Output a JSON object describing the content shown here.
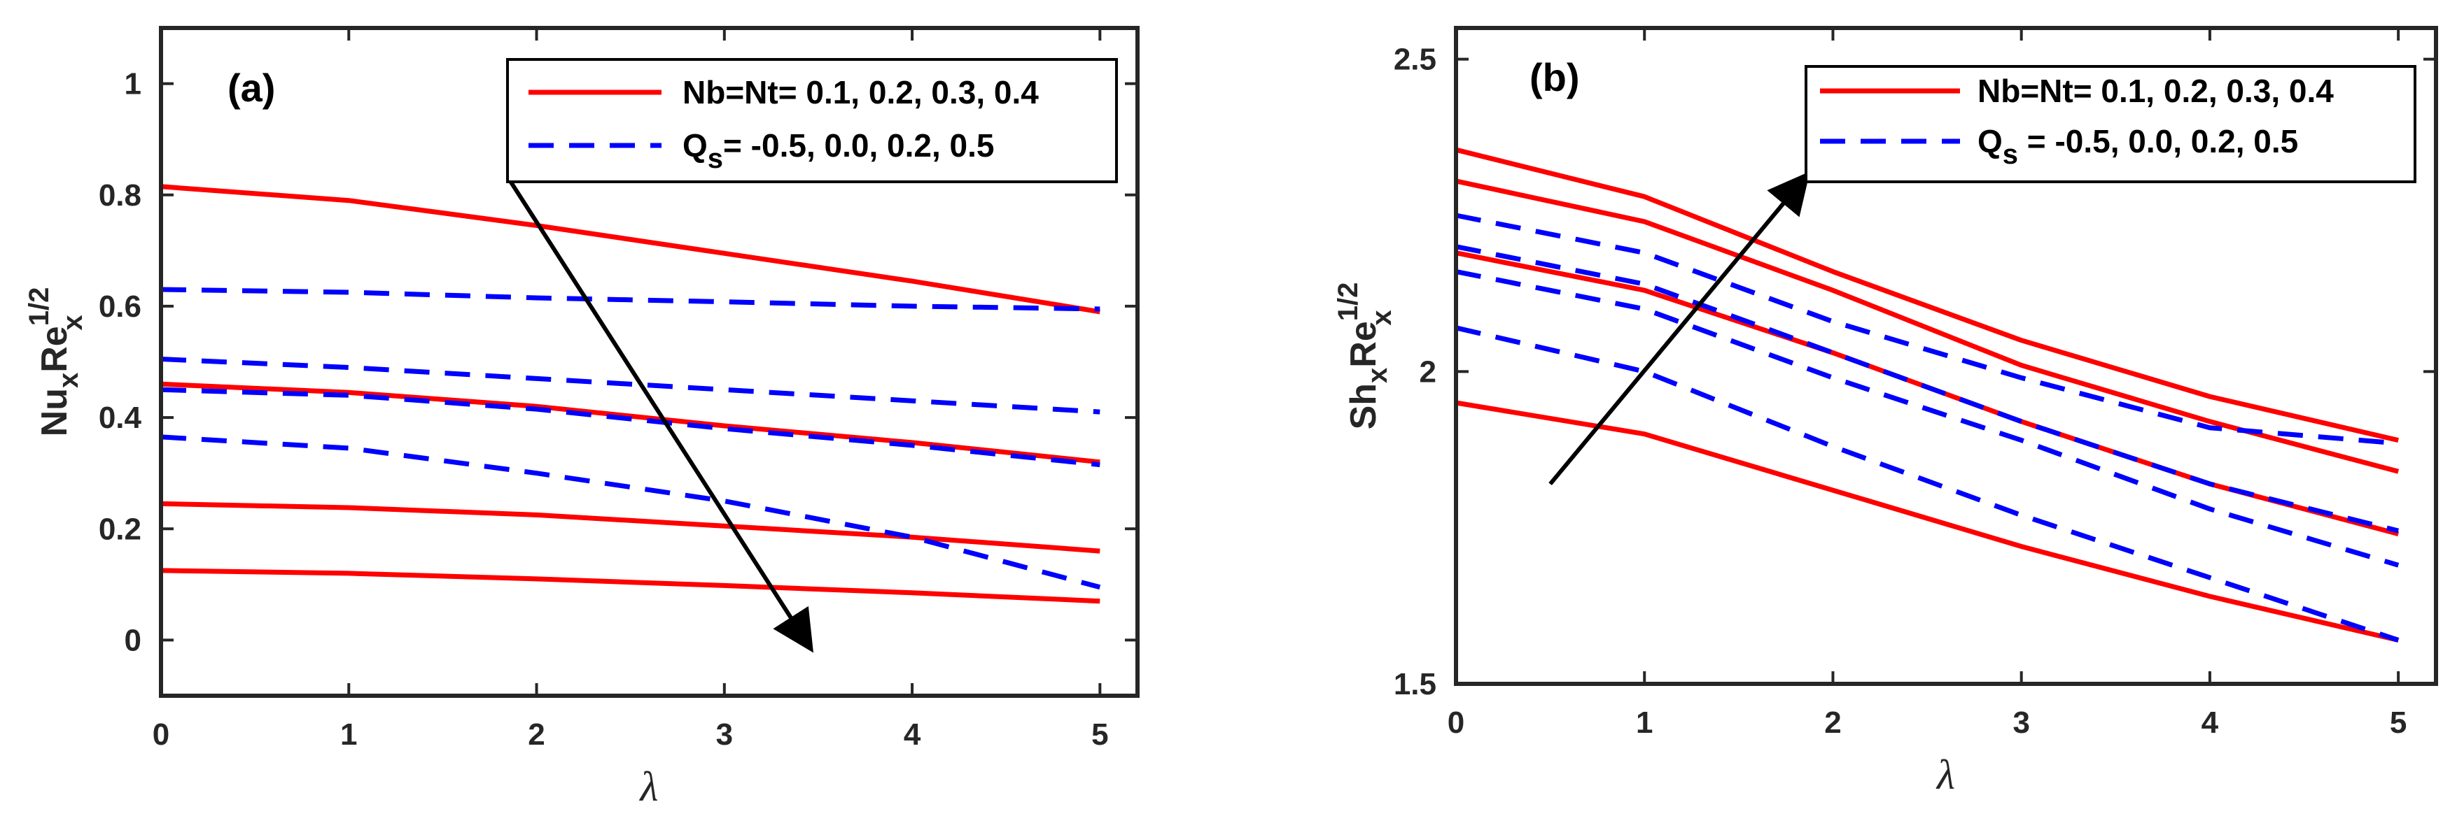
{
  "colors": {
    "solid": "#ff0000",
    "dashed": "#0000ff",
    "arrow": "#000000",
    "axis": "#262626"
  },
  "chart_data": [
    {
      "type": "line",
      "panel_label": "(a)",
      "xlabel": "λ",
      "ylabel": {
        "base1": "Nu",
        "sub1": "x",
        "base2": "Re",
        "sup": "1/2",
        "sub2": "x"
      },
      "xlim": [
        0,
        5.2
      ],
      "ylim": [
        -0.1,
        1.1
      ],
      "xticks": [
        0,
        1,
        2,
        3,
        4,
        5
      ],
      "yticks": [
        0,
        0.2,
        0.4,
        0.6,
        0.8,
        1
      ],
      "ytick_labels": [
        "0",
        "0.2",
        "0.4",
        "0.6",
        "0.8",
        "1"
      ],
      "x": [
        0,
        1,
        2,
        3,
        4,
        5
      ],
      "legend": [
        {
          "style": "solid",
          "text": "Nb=Nt= 0.1, 0.2, 0.3, 0.4"
        },
        {
          "style": "dashed",
          "text_pre": "Q",
          "text_sub": "s",
          "text_post": "= -0.5, 0.0, 0.2, 0.5"
        }
      ],
      "series": [
        {
          "name": "Nb=Nt=0.1",
          "style": "solid",
          "values": [
            0.815,
            0.79,
            0.745,
            0.695,
            0.645,
            0.59
          ]
        },
        {
          "name": "Nb=Nt=0.2",
          "style": "solid",
          "values": [
            0.46,
            0.445,
            0.42,
            0.385,
            0.355,
            0.32
          ]
        },
        {
          "name": "Nb=Nt=0.3",
          "style": "solid",
          "values": [
            0.245,
            0.238,
            0.225,
            0.205,
            0.185,
            0.16
          ]
        },
        {
          "name": "Nb=Nt=0.4",
          "style": "solid",
          "values": [
            0.125,
            0.12,
            0.11,
            0.098,
            0.085,
            0.07
          ]
        },
        {
          "name": "Qs=-0.5",
          "style": "dashed",
          "values": [
            0.63,
            0.625,
            0.615,
            0.608,
            0.6,
            0.595
          ]
        },
        {
          "name": "Qs=0.0",
          "style": "dashed",
          "values": [
            0.505,
            0.49,
            0.47,
            0.45,
            0.43,
            0.41
          ]
        },
        {
          "name": "Qs=0.2",
          "style": "dashed",
          "values": [
            0.45,
            0.44,
            0.415,
            0.38,
            0.35,
            0.315
          ]
        },
        {
          "name": "Qs=0.5",
          "style": "dashed",
          "values": [
            0.365,
            0.345,
            0.3,
            0.25,
            0.185,
            0.095
          ]
        }
      ],
      "arrow": {
        "from": [
          1.85,
          0.83
        ],
        "to": [
          3.45,
          -0.01
        ]
      }
    },
    {
      "type": "line",
      "panel_label": "(b)",
      "xlabel": "λ",
      "ylabel": {
        "base1": "Sh",
        "sub1": "x",
        "base2": "Re",
        "sup": "1/2",
        "sub2": "x"
      },
      "xlim": [
        0,
        5.2
      ],
      "ylim": [
        1.5,
        2.55
      ],
      "xticks": [
        0,
        1,
        2,
        3,
        4,
        5
      ],
      "yticks": [
        1.5,
        2,
        2.5
      ],
      "ytick_labels": [
        "1.5",
        "2",
        "2.5"
      ],
      "x": [
        0,
        1,
        2,
        3,
        4,
        5
      ],
      "legend": [
        {
          "style": "solid",
          "text": "Nb=Nt= 0.1, 0.2, 0.3, 0.4"
        },
        {
          "style": "dashed",
          "text_pre": "Q",
          "text_sub": "s",
          "text_post": " = -0.5, 0.0, 0.2, 0.5"
        }
      ],
      "series": [
        {
          "name": "Nb=Nt=0.1",
          "style": "solid",
          "values": [
            1.95,
            1.9,
            1.81,
            1.72,
            1.64,
            1.57
          ]
        },
        {
          "name": "Nb=Nt=0.2",
          "style": "solid",
          "values": [
            2.19,
            2.13,
            2.03,
            1.92,
            1.82,
            1.74
          ]
        },
        {
          "name": "Nb=Nt=0.3",
          "style": "solid",
          "values": [
            2.305,
            2.24,
            2.13,
            2.01,
            1.92,
            1.84
          ]
        },
        {
          "name": "Nb=Nt=0.4",
          "style": "solid",
          "values": [
            2.355,
            2.28,
            2.16,
            2.05,
            1.96,
            1.89
          ]
        },
        {
          "name": "Qs=-0.5",
          "style": "dashed",
          "values": [
            2.07,
            2.0,
            1.88,
            1.77,
            1.67,
            1.57
          ]
        },
        {
          "name": "Qs=0.0",
          "style": "dashed",
          "values": [
            2.16,
            2.1,
            1.99,
            1.89,
            1.78,
            1.69
          ]
        },
        {
          "name": "Qs=0.2",
          "style": "dashed",
          "values": [
            2.2,
            2.14,
            2.03,
            1.92,
            1.82,
            1.745
          ]
        },
        {
          "name": "Qs=0.5",
          "style": "dashed",
          "values": [
            2.25,
            2.19,
            2.08,
            1.99,
            1.91,
            1.885
          ]
        }
      ],
      "arrow": {
        "from": [
          0.5,
          1.82
        ],
        "to": [
          1.85,
          2.31
        ]
      }
    }
  ]
}
